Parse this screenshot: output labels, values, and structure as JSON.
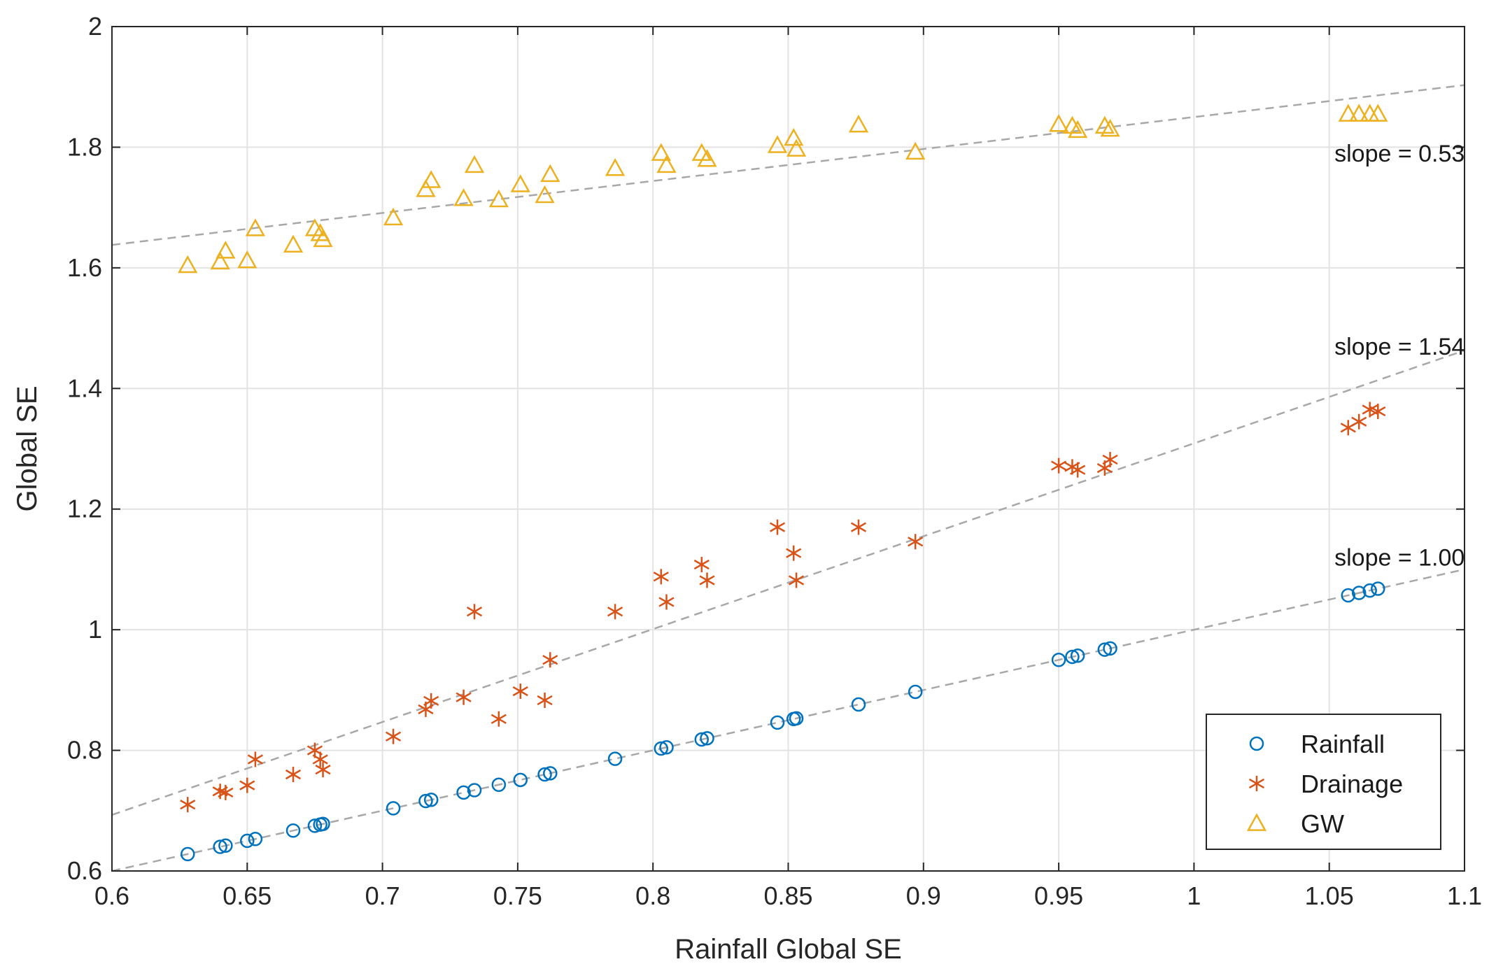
{
  "chart_data": {
    "type": "scatter",
    "xlabel": "Rainfall Global SE",
    "ylabel": "Global SE",
    "xlim": [
      0.6,
      1.1
    ],
    "ylim": [
      0.6,
      2.0
    ],
    "x_ticks": [
      0.6,
      0.65,
      0.7,
      0.75,
      0.8,
      0.85,
      0.9,
      0.95,
      1.0,
      1.05,
      1.1
    ],
    "x_tick_labels": [
      "0.6",
      "0.65",
      "0.7",
      "0.75",
      "0.8",
      "0.85",
      "0.9",
      "0.95",
      "1",
      "1.05",
      "1.1"
    ],
    "y_ticks": [
      0.6,
      0.8,
      1.0,
      1.2,
      1.4,
      1.6,
      1.8,
      2.0
    ],
    "y_tick_labels": [
      "0.6",
      "0.8",
      "1",
      "1.2",
      "1.4",
      "1.6",
      "1.8",
      "2"
    ],
    "grid": true,
    "legend_position": "bottom-right",
    "x": [
      0.628,
      0.64,
      0.642,
      0.65,
      0.653,
      0.667,
      0.675,
      0.677,
      0.678,
      0.704,
      0.716,
      0.718,
      0.73,
      0.734,
      0.743,
      0.751,
      0.76,
      0.762,
      0.786,
      0.803,
      0.805,
      0.818,
      0.82,
      0.846,
      0.852,
      0.853,
      0.876,
      0.897,
      0.95,
      0.955,
      0.957,
      0.967,
      0.969,
      1.057,
      1.061,
      1.065,
      1.068
    ],
    "series": [
      {
        "name": "Rainfall",
        "marker": "circle",
        "color": "#0072BD",
        "values": [
          0.628,
          0.64,
          0.642,
          0.65,
          0.653,
          0.667,
          0.675,
          0.677,
          0.678,
          0.704,
          0.716,
          0.718,
          0.73,
          0.734,
          0.743,
          0.751,
          0.76,
          0.762,
          0.786,
          0.803,
          0.805,
          0.818,
          0.82,
          0.846,
          0.852,
          0.853,
          0.876,
          0.897,
          0.95,
          0.955,
          0.957,
          0.967,
          0.969,
          1.057,
          1.061,
          1.065,
          1.068
        ]
      },
      {
        "name": "Drainage",
        "marker": "asterisk",
        "color": "#D95319",
        "values": [
          0.71,
          0.732,
          0.73,
          0.742,
          0.785,
          0.76,
          0.8,
          0.785,
          0.768,
          0.823,
          0.868,
          0.882,
          0.888,
          1.03,
          0.852,
          0.898,
          0.883,
          0.95,
          1.03,
          1.088,
          1.046,
          1.108,
          1.082,
          1.17,
          1.127,
          1.082,
          1.17,
          1.146,
          1.272,
          1.27,
          1.265,
          1.268,
          1.282,
          1.335,
          1.345,
          1.365,
          1.362
        ]
      },
      {
        "name": "GW",
        "marker": "triangle",
        "color": "#EDB120",
        "values": [
          1.604,
          1.61,
          1.628,
          1.612,
          1.665,
          1.638,
          1.665,
          1.657,
          1.647,
          1.683,
          1.73,
          1.745,
          1.715,
          1.77,
          1.713,
          1.738,
          1.72,
          1.755,
          1.765,
          1.79,
          1.77,
          1.79,
          1.78,
          1.803,
          1.815,
          1.797,
          1.837,
          1.792,
          1.838,
          1.835,
          1.828,
          1.835,
          1.83,
          1.855,
          1.855,
          1.855,
          1.855
        ]
      }
    ],
    "fit_lines": [
      {
        "series": "Rainfall",
        "slope": 1.0,
        "intercept": 0.0,
        "label": "slope = 1.00"
      },
      {
        "series": "Drainage",
        "slope": 1.54,
        "intercept": -0.231,
        "label": "slope = 1.54"
      },
      {
        "series": "GW",
        "slope": 0.53,
        "intercept": 1.32,
        "label": "slope = 0.53"
      }
    ]
  }
}
